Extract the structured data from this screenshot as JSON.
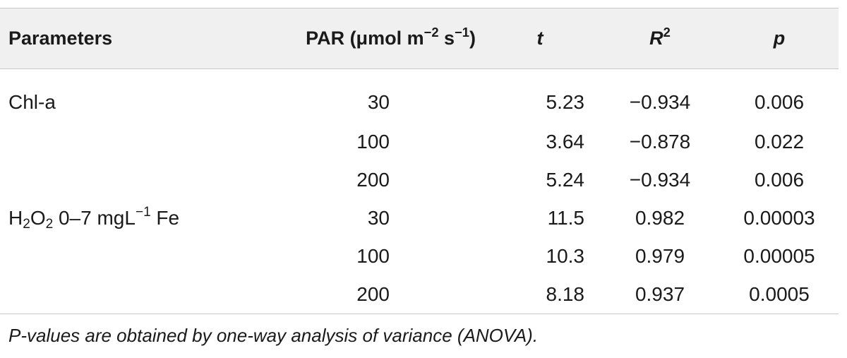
{
  "table": {
    "headers": {
      "parameters": "Parameters",
      "par_main": "PAR (μmol m",
      "par_sup1": "−2",
      "par_mid": " s",
      "par_sup2": "−1",
      "par_end": ")",
      "t": "t",
      "r_main": "R",
      "r_sup": "2",
      "p": "p"
    },
    "rows": [
      {
        "param_text": "Chl-a",
        "par": "30",
        "t": "5.23",
        "r2": "−0.934",
        "p": "0.006"
      },
      {
        "param_text": "",
        "par": "100",
        "t": "3.64",
        "r2": "−0.878",
        "p": "0.022"
      },
      {
        "param_text": "",
        "par": "200",
        "t": "5.24",
        "r2": "−0.934",
        "p": "0.006"
      },
      {
        "param_h": "H",
        "param_sub1": "2",
        "param_o": "O",
        "param_sub2": "2",
        "param_rest": " 0–7 mgL",
        "param_sup": "−1",
        "param_end": " Fe",
        "par": "30",
        "t": "11.5",
        "r2": "0.982",
        "p": "0.00003"
      },
      {
        "param_text": "",
        "par": "100",
        "t": "10.3",
        "r2": "0.979",
        "p": "0.00005"
      },
      {
        "param_text": "",
        "par": "200",
        "t": "8.18",
        "r2": "0.937",
        "p": "0.0005"
      }
    ],
    "footnote": "P-values are obtained by one-way analysis of variance (ANOVA)."
  }
}
